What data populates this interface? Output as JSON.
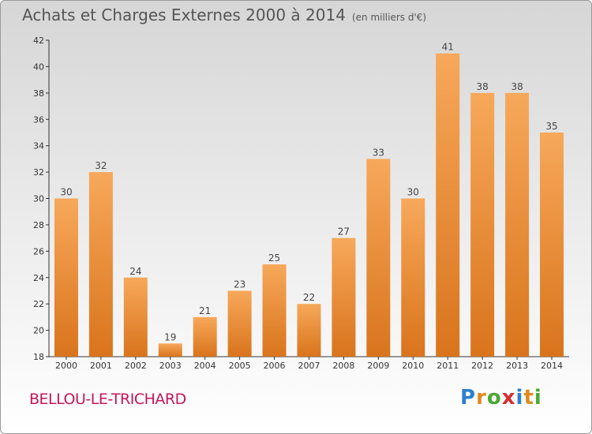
{
  "header": {
    "title": "Achats et Charges Externes 2000 à 2014",
    "subtitle": "(en milliers d'€)"
  },
  "footer": {
    "city": "BELLOU-LE-TRICHARD",
    "brand": "Proxiti",
    "brand_colors": [
      "#2e7fcf",
      "#e08a1e",
      "#4aa832",
      "#d62e2e",
      "#2e7fcf",
      "#e08a1e",
      "#4aa832"
    ]
  },
  "colors": {
    "bar_light": "#f7a85a",
    "bar_dark": "#d9741c",
    "axis": "#333333",
    "grid": "#cfcfcf"
  },
  "chart_data": {
    "type": "bar",
    "categories": [
      "2000",
      "2001",
      "2002",
      "2003",
      "2004",
      "2005",
      "2006",
      "2007",
      "2008",
      "2009",
      "2010",
      "2011",
      "2012",
      "2013",
      "2014"
    ],
    "values": [
      30,
      32,
      24,
      19,
      21,
      23,
      25,
      22,
      27,
      33,
      30,
      41,
      38,
      38,
      35
    ],
    "ylim": [
      18,
      42
    ],
    "yticks": [
      18,
      20,
      22,
      24,
      26,
      28,
      30,
      32,
      34,
      36,
      38,
      40,
      42
    ],
    "grid": false,
    "data_labels": true
  }
}
